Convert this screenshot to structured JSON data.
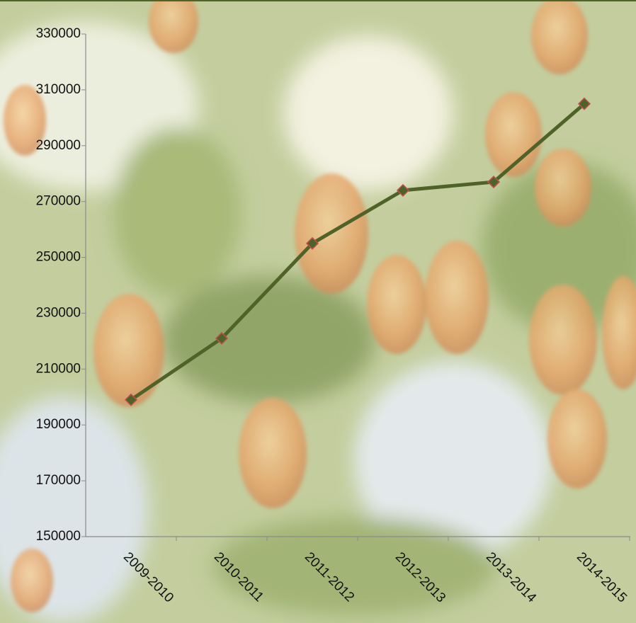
{
  "chart_data": {
    "type": "line",
    "categories": [
      "2009-2010",
      "2010-2011",
      "2011-2012",
      "2012-2013",
      "2013-2014",
      "2014-2015"
    ],
    "values": [
      199000,
      221000,
      255000,
      274000,
      277000,
      305000
    ],
    "color": "#4f6228",
    "marker_edge_color": "#c0504d",
    "ylim": [
      150000,
      330000
    ],
    "yticks": [
      150000,
      170000,
      190000,
      210000,
      230000,
      250000,
      270000,
      290000,
      310000,
      330000
    ],
    "grid": false
  }
}
